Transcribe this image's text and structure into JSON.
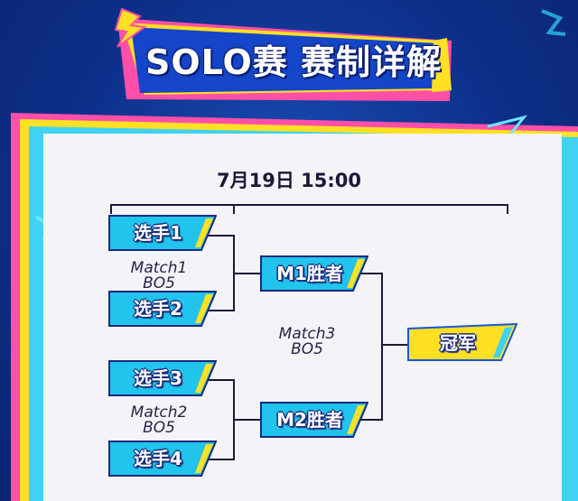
{
  "title": "SOLO赛 赛制详解",
  "schedule": "7月19日 15:00",
  "round1": [
    {
      "players": [
        "选手1",
        "选手2"
      ],
      "match": "Match1",
      "format": "BO5"
    },
    {
      "players": [
        "选手3",
        "选手4"
      ],
      "match": "Match2",
      "format": "BO5"
    }
  ],
  "round2": {
    "slots": [
      "M1胜者",
      "M2胜者"
    ],
    "match": "Match3",
    "format": "BO5"
  },
  "champion": "冠军",
  "colors": {
    "background": "#0d2f8a",
    "accent_cyan": "#1fc8ee",
    "accent_yellow": "#ffe023",
    "accent_pink": "#ff4fa8",
    "line": "#1b1838"
  }
}
